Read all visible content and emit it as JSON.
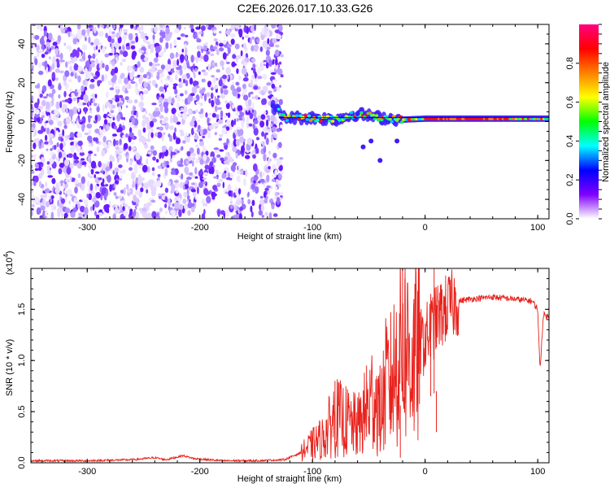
{
  "chart_data": [
    {
      "type": "heatmap",
      "title": "C2E6.2026.017.10.33.G26",
      "xlabel": "Height of straight line (km)",
      "ylabel": "Frequency (Hz)",
      "xlim": [
        -350,
        110
      ],
      "ylim": [
        -50,
        50
      ],
      "x_ticks": [
        -300,
        -200,
        -100,
        0,
        100
      ],
      "x_tick_labels": [
        "-300",
        "-200",
        "-100",
        "0",
        "100"
      ],
      "y_ticks": [
        -40,
        -20,
        0,
        20,
        40
      ],
      "y_tick_labels": [
        "-40",
        "-20",
        "0",
        "20",
        "40"
      ],
      "noise_region_x": [
        -350,
        -127
      ],
      "signal_line": [
        {
          "x": -135,
          "f": 8
        },
        {
          "x": -125,
          "f": 2
        },
        {
          "x": -100,
          "f": 2
        },
        {
          "x": -80,
          "f": 1
        },
        {
          "x": -60,
          "f": 4
        },
        {
          "x": -40,
          "f": 2
        },
        {
          "x": -20,
          "f": 1
        },
        {
          "x": 0,
          "f": 1.5
        },
        {
          "x": 50,
          "f": 1.5
        },
        {
          "x": 110,
          "f": 1.5
        }
      ],
      "colorbar": {
        "label": "Normalized spectral amplitude",
        "range": [
          0,
          1
        ],
        "ticks": [
          0.0,
          0.2,
          0.4,
          0.6,
          0.8
        ],
        "tick_labels": [
          "0.0",
          "0.2",
          "0.4",
          "0.6",
          "0.8"
        ],
        "colors": [
          "#ffffff",
          "#7f00ff",
          "#0000ff",
          "#00ffff",
          "#00ff00",
          "#ffff00",
          "#ff8000",
          "#ff0000",
          "#ff0080"
        ]
      }
    },
    {
      "type": "line",
      "title": "",
      "xlabel": "Height of straight line (km)",
      "ylabel": "SNR (10 * v/v)",
      "exponent_label": "(x10",
      "exponent_power": "4",
      "exponent_close": ")",
      "xlim": [
        -350,
        110
      ],
      "ylim": [
        0,
        1.9
      ],
      "x_ticks": [
        -300,
        -200,
        -100,
        0,
        100
      ],
      "x_tick_labels": [
        "-300",
        "-200",
        "-100",
        "0",
        "100"
      ],
      "y_ticks": [
        0.0,
        0.5,
        1.0,
        1.5
      ],
      "y_tick_labels": [
        "0.0",
        "0.5",
        "1.0",
        "1.5"
      ],
      "line_color": "#e8231d",
      "series": [
        {
          "name": "SNR",
          "points": [
            [
              -350,
              0.02
            ],
            [
              -300,
              0.02
            ],
            [
              -260,
              0.03
            ],
            [
              -240,
              0.05
            ],
            [
              -230,
              0.03
            ],
            [
              -215,
              0.07
            ],
            [
              -205,
              0.04
            ],
            [
              -180,
              0.02
            ],
            [
              -150,
              0.02
            ],
            [
              -125,
              0.03
            ],
            [
              -110,
              0.1
            ],
            [
              -100,
              0.18
            ],
            [
              -90,
              0.25
            ],
            [
              -80,
              0.45
            ],
            [
              -70,
              0.4
            ],
            [
              -60,
              0.35
            ],
            [
              -50,
              0.55
            ],
            [
              -45,
              0.7
            ],
            [
              -40,
              0.45
            ],
            [
              -35,
              0.75
            ],
            [
              -30,
              0.8
            ],
            [
              -25,
              1.0
            ],
            [
              -20,
              1.2
            ],
            [
              -15,
              1.1
            ],
            [
              -10,
              1.0
            ],
            [
              -5,
              1.15
            ],
            [
              0,
              1.2
            ],
            [
              10,
              1.4
            ],
            [
              20,
              1.52
            ],
            [
              30,
              1.58
            ],
            [
              40,
              1.6
            ],
            [
              60,
              1.62
            ],
            [
              80,
              1.6
            ],
            [
              95,
              1.58
            ],
            [
              100,
              1.5
            ],
            [
              102,
              0.9
            ],
            [
              105,
              1.45
            ],
            [
              110,
              1.42
            ]
          ]
        }
      ],
      "spikes": [
        [
          -80,
          0.8
        ],
        [
          -52,
          0.95
        ],
        [
          -40,
          0.95
        ],
        [
          -30,
          0.95
        ],
        [
          -20,
          1.9
        ],
        [
          -18,
          1.8
        ],
        [
          -10,
          1.6
        ],
        [
          -5,
          1.25
        ],
        [
          5,
          1.65
        ],
        [
          8,
          1.9
        ],
        [
          10,
          0.3
        ],
        [
          -45,
          0.2
        ],
        [
          -22,
          0.05
        ]
      ]
    }
  ]
}
